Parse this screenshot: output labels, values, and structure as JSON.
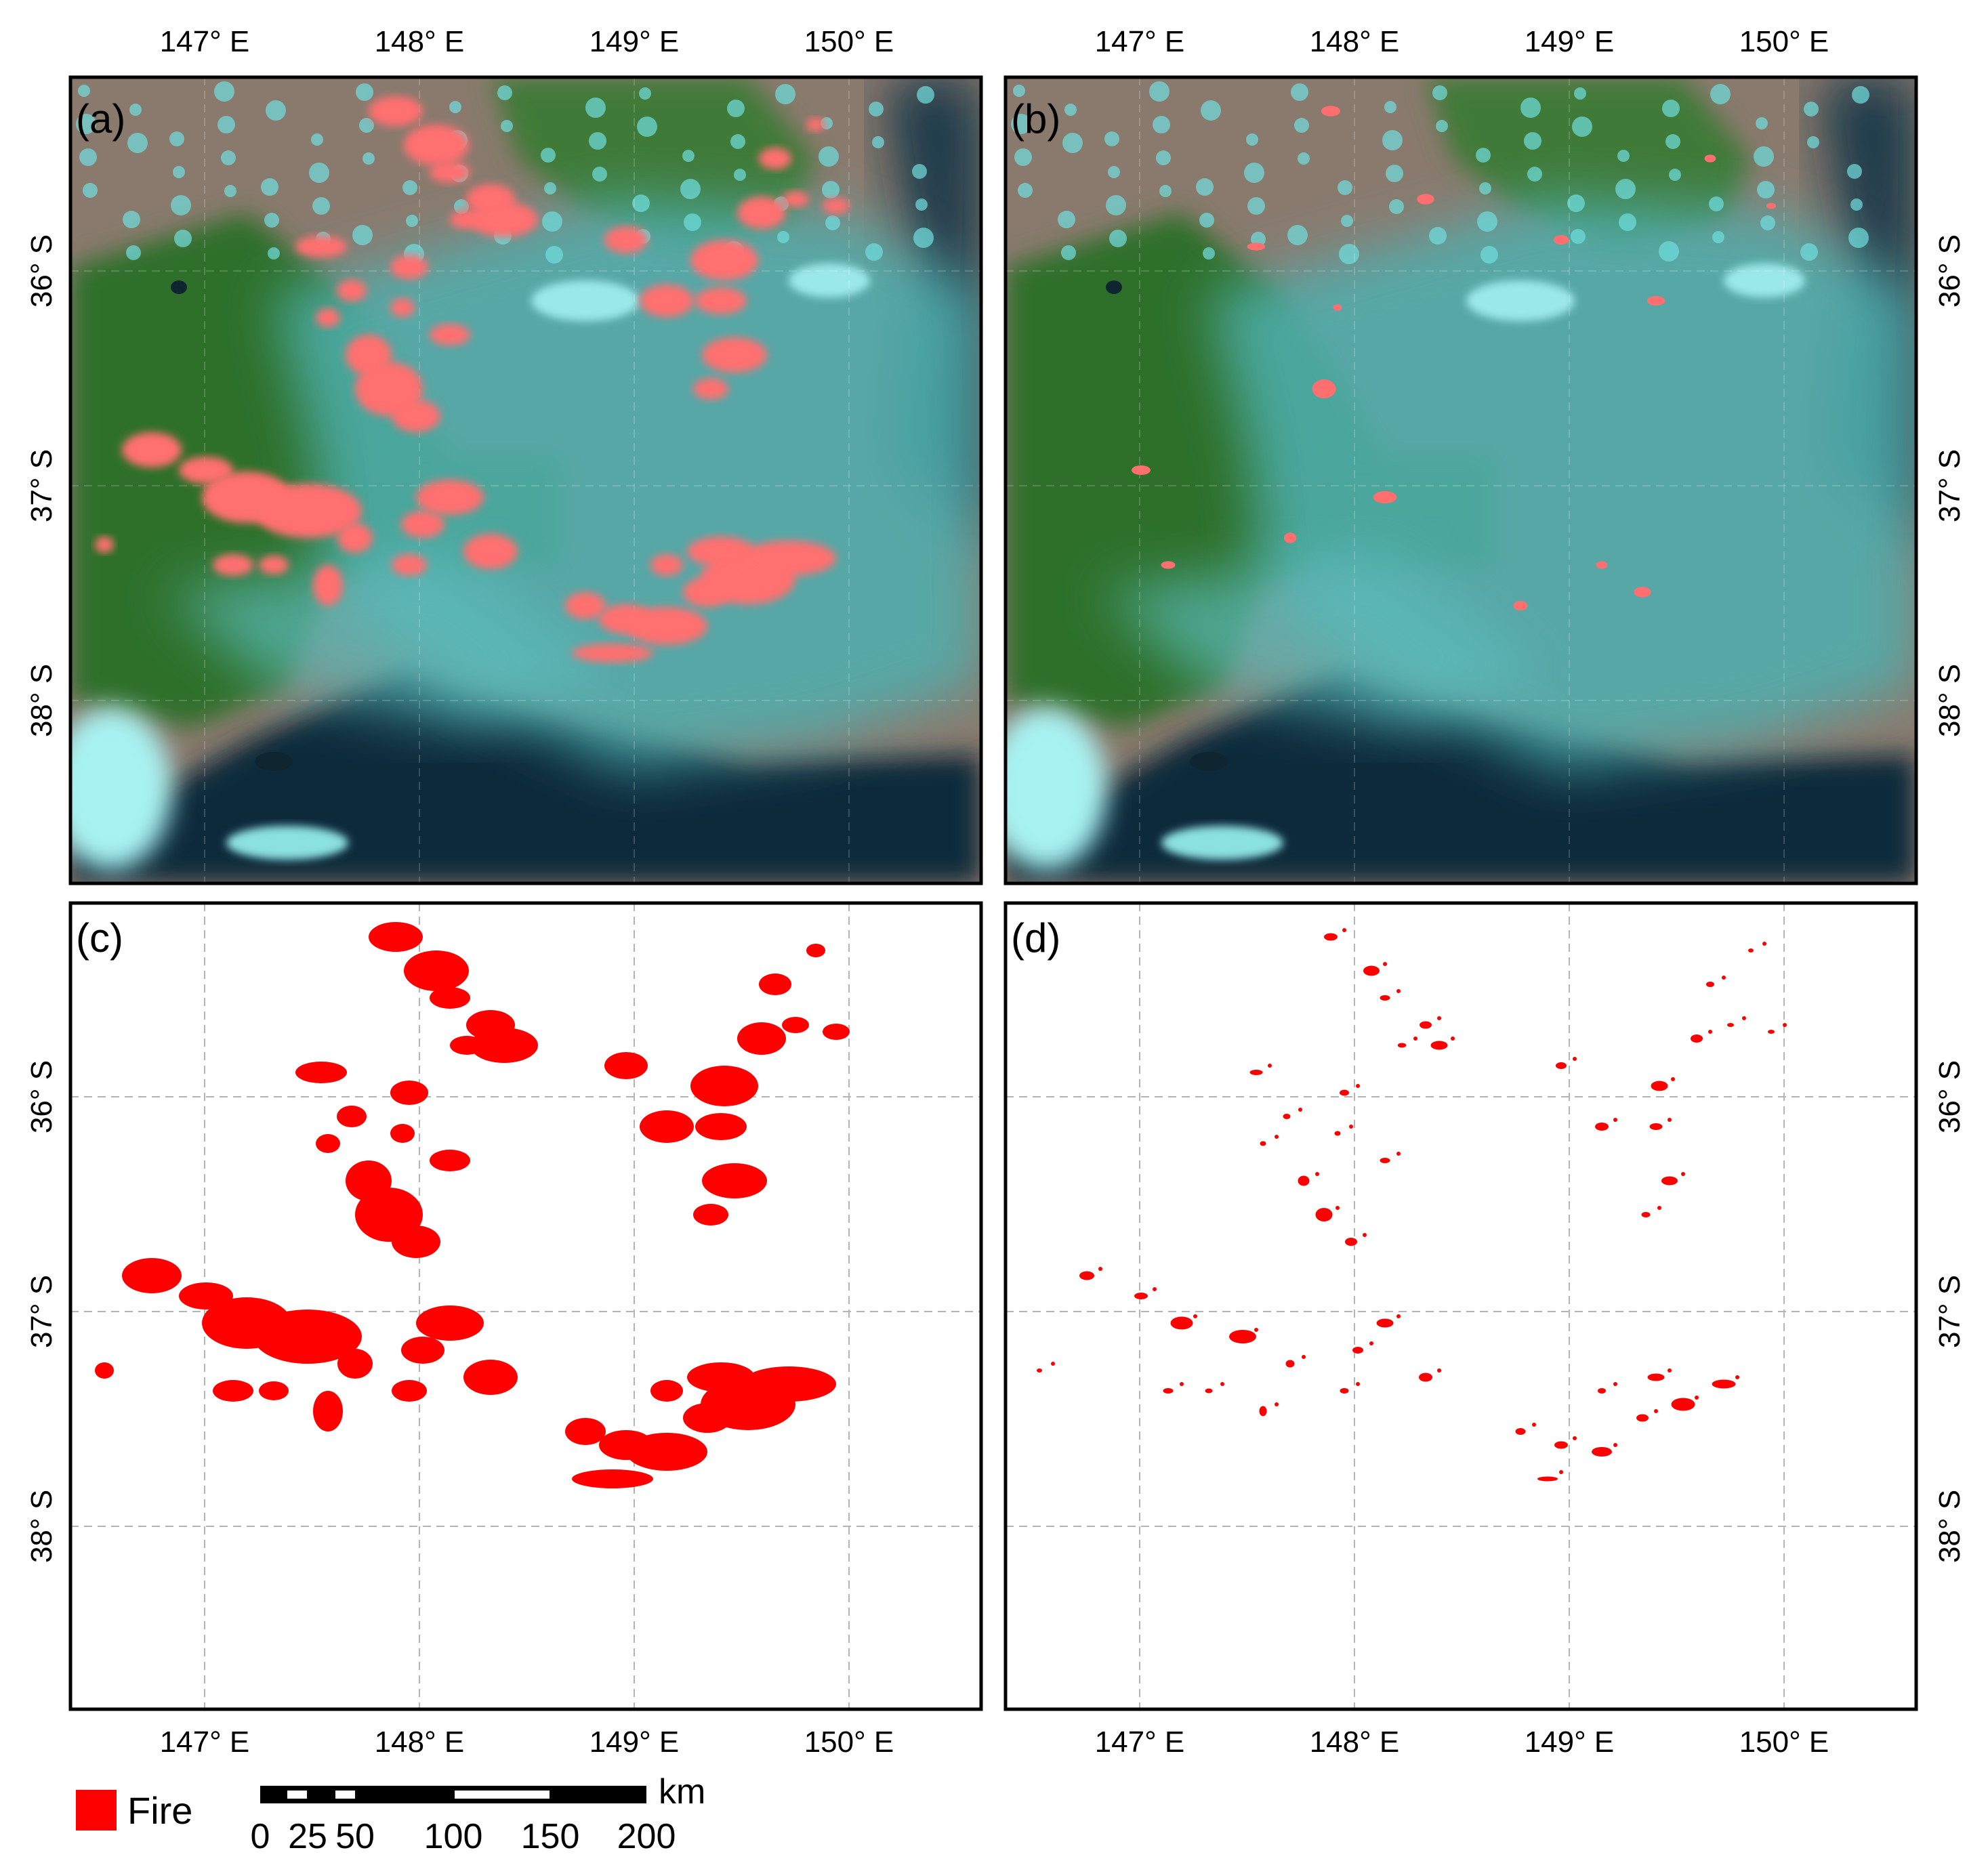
{
  "panels": [
    {
      "label": "(a)",
      "kind": "satellite"
    },
    {
      "label": "(b)",
      "kind": "satellite"
    },
    {
      "label": "(c)",
      "kind": "fire-map"
    },
    {
      "label": "(d)",
      "kind": "fire-map"
    }
  ],
  "axes": {
    "lon_labels": [
      "147° E",
      "148° E",
      "149° E",
      "150° E"
    ],
    "lat_labels": [
      "36° S",
      "37° S",
      "38° S"
    ]
  },
  "legend": {
    "label": "Fire",
    "color": "#ff0000"
  },
  "scale_bar": {
    "unit": "km",
    "ticks": [
      "0",
      "25",
      "50",
      "100",
      "150",
      "200"
    ]
  },
  "colors": {
    "fire": "#ff0000",
    "fire_overlay": "#ff6f6f",
    "smoke": "#4fb0b0",
    "ocean": "#0d2a3a",
    "land": "#2f6f2c"
  }
}
